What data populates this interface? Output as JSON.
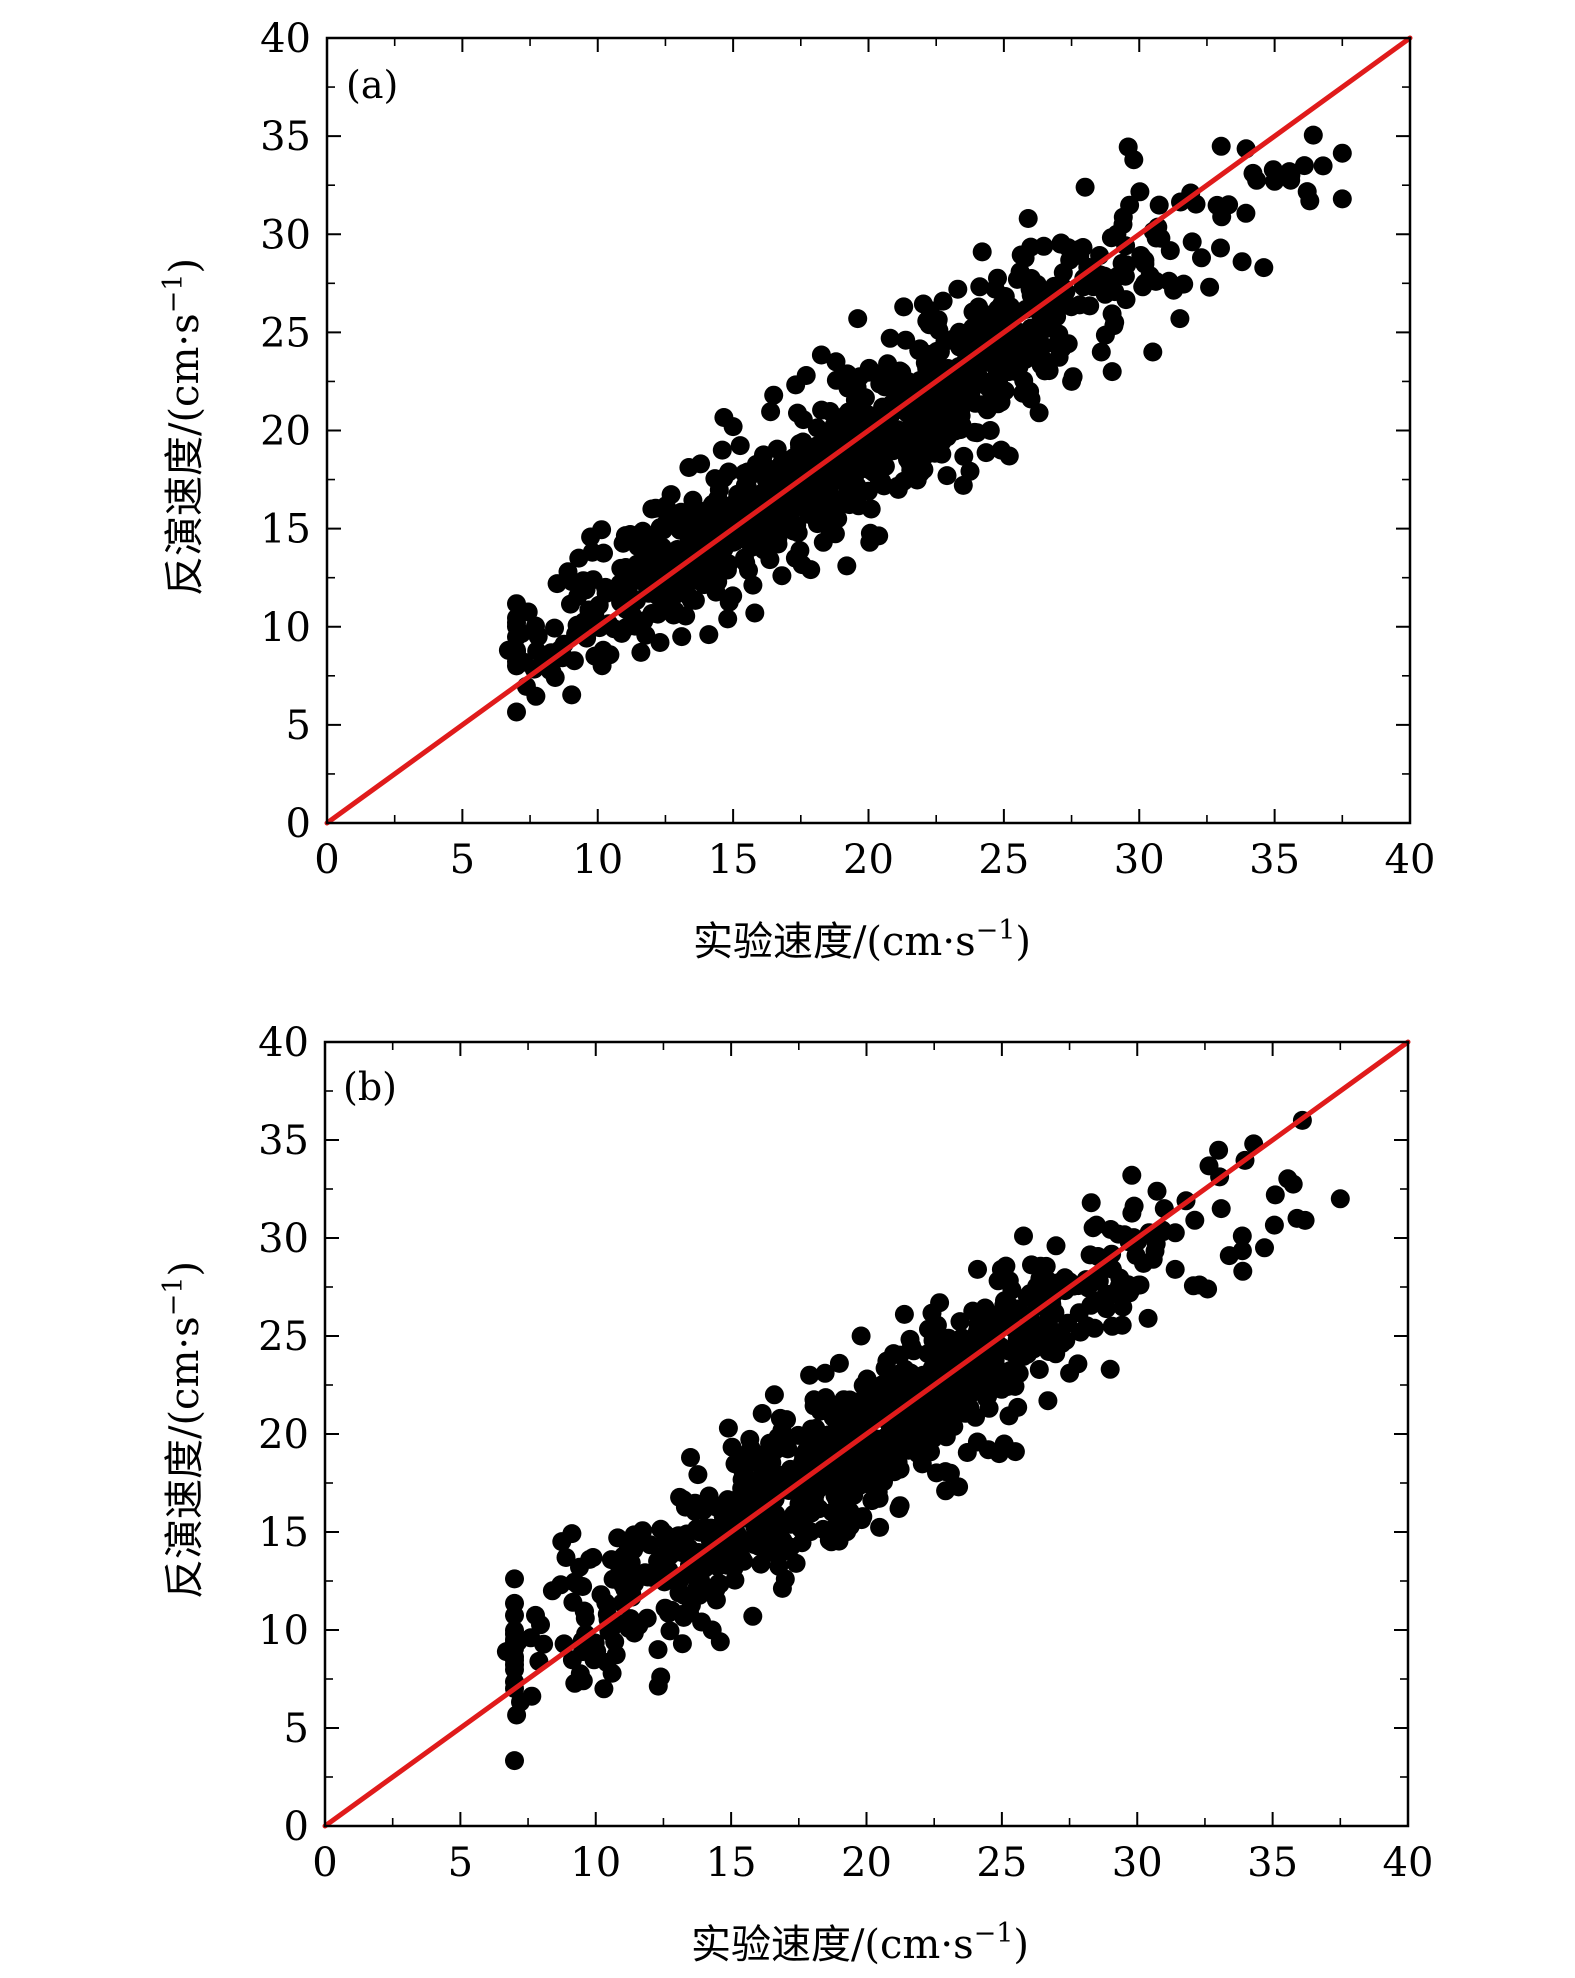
{
  "chart_data": [
    {
      "type": "scatter",
      "panel_label": "(a)",
      "xlabel": "实验速度/(cm·s",
      "xlabel_sup": "−1",
      "xlabel_tail": ")",
      "ylabel": "反演速度/(cm·s",
      "ylabel_sup": "−1",
      "ylabel_tail": ")",
      "xlim": [
        0,
        40
      ],
      "ylim": [
        0,
        40
      ],
      "xticks": [
        "0",
        "5",
        "10",
        "15",
        "20",
        "25",
        "30",
        "35",
        "40"
      ],
      "yticks": [
        "0",
        "5",
        "10",
        "15",
        "20",
        "25",
        "30",
        "35",
        "40"
      ],
      "grid": false,
      "marker_color": "#000000",
      "reference_line": {
        "from": [
          0,
          0
        ],
        "to": [
          40,
          40
        ],
        "color": "#e01b1b"
      },
      "n_points": 900,
      "seed": 7,
      "series": [
        {
          "points": [
            [
              6.7,
              8.8
            ],
            [
              7.8,
              9.5
            ],
            [
              8.1,
              8.4
            ],
            [
              8.5,
              12.2
            ],
            [
              8.9,
              12.8
            ],
            [
              9.3,
              13.5
            ],
            [
              9.8,
              13.8
            ],
            [
              10.2,
              8.8
            ],
            [
              10.6,
              9.9
            ],
            [
              11.0,
              12.1
            ],
            [
              11.2,
              14.7
            ],
            [
              11.7,
              10.3
            ],
            [
              12.0,
              16.0
            ],
            [
              12.3,
              9.2
            ],
            [
              12.8,
              10.6
            ],
            [
              13.1,
              9.5
            ],
            [
              13.4,
              11.5
            ],
            [
              13.5,
              14.6
            ],
            [
              13.8,
              18.3
            ],
            [
              14.1,
              9.6
            ],
            [
              14.5,
              13.4
            ],
            [
              14.6,
              19.0
            ],
            [
              14.8,
              10.4
            ],
            [
              15.0,
              20.2
            ],
            [
              15.3,
              16.7
            ],
            [
              15.8,
              10.7
            ],
            [
              16.0,
              14.1
            ],
            [
              16.5,
              21.8
            ],
            [
              16.8,
              12.6
            ],
            [
              17.3,
              13.5
            ],
            [
              17.7,
              22.8
            ],
            [
              18.2,
              18.9
            ],
            [
              18.5,
              15.1
            ],
            [
              18.8,
              23.5
            ],
            [
              19.2,
              13.1
            ],
            [
              19.4,
              17.5
            ],
            [
              19.6,
              25.7
            ],
            [
              20.1,
              16.0
            ],
            [
              20.5,
              21.0
            ],
            [
              20.8,
              24.7
            ],
            [
              21.1,
              17.0
            ],
            [
              21.3,
              26.3
            ],
            [
              21.6,
              19.4
            ],
            [
              22.2,
              21.8
            ],
            [
              22.6,
              25.1
            ],
            [
              22.9,
              17.7
            ],
            [
              23.3,
              27.2
            ],
            [
              23.5,
              17.2
            ],
            [
              23.8,
              22.4
            ],
            [
              24.2,
              29.1
            ],
            [
              24.5,
              20.0
            ],
            [
              24.9,
              19.0
            ],
            [
              25.2,
              18.7
            ],
            [
              25.5,
              27.7
            ],
            [
              25.7,
              21.9
            ],
            [
              25.9,
              30.8
            ],
            [
              26.3,
              20.9
            ],
            [
              26.6,
              25.2
            ],
            [
              27.1,
              29.5
            ],
            [
              27.5,
              22.5
            ],
            [
              27.8,
              26.4
            ],
            [
              28.0,
              32.4
            ],
            [
              28.3,
              28.1
            ],
            [
              28.6,
              24.0
            ],
            [
              29.0,
              23.0
            ],
            [
              29.4,
              30.5
            ],
            [
              29.8,
              33.8
            ],
            [
              30.2,
              27.5
            ],
            [
              30.5,
              24.0
            ],
            [
              30.8,
              29.8
            ],
            [
              31.1,
              27.6
            ],
            [
              31.5,
              25.7
            ],
            [
              31.9,
              32.1
            ],
            [
              32.3,
              28.8
            ],
            [
              32.6,
              27.3
            ],
            [
              33.0,
              29.3
            ],
            [
              33.3,
              31.5
            ],
            [
              33.8,
              28.6
            ],
            [
              34.2,
              33.1
            ],
            [
              34.6,
              28.3
            ],
            [
              35.0,
              32.7
            ],
            [
              35.6,
              33.0
            ],
            [
              36.1,
              33.5
            ],
            [
              36.3,
              31.7
            ],
            [
              37.5,
              31.8
            ]
          ]
        }
      ]
    },
    {
      "type": "scatter",
      "panel_label": "(b)",
      "xlabel": "实验速度/(cm·s",
      "xlabel_sup": "−1",
      "xlabel_tail": ")",
      "ylabel": "反演速度/(cm·s",
      "ylabel_sup": "−1",
      "ylabel_tail": ")",
      "xlim": [
        0,
        40
      ],
      "ylim": [
        0,
        40
      ],
      "xticks": [
        "0",
        "5",
        "10",
        "15",
        "20",
        "25",
        "30",
        "35",
        "40"
      ],
      "yticks": [
        "0",
        "5",
        "10",
        "15",
        "20",
        "25",
        "30",
        "35",
        "40"
      ],
      "grid": false,
      "marker_color": "#000000",
      "reference_line": {
        "from": [
          0,
          0
        ],
        "to": [
          40,
          40
        ],
        "color": "#e01b1b"
      },
      "n_points": 900,
      "seed": 13,
      "series": [
        {
          "points": [
            [
              6.7,
              8.9
            ],
            [
              7.6,
              9.6
            ],
            [
              7.9,
              8.4
            ],
            [
              8.4,
              12.0
            ],
            [
              8.9,
              13.7
            ],
            [
              9.4,
              13.2
            ],
            [
              9.9,
              13.7
            ],
            [
              10.3,
              7.0
            ],
            [
              10.7,
              9.4
            ],
            [
              11.0,
              12.3
            ],
            [
              11.4,
              14.1
            ],
            [
              11.9,
              10.6
            ],
            [
              12.3,
              9.0
            ],
            [
              12.4,
              7.6
            ],
            [
              12.8,
              11.0
            ],
            [
              13.2,
              9.3
            ],
            [
              13.5,
              18.8
            ],
            [
              13.9,
              12.4
            ],
            [
              14.3,
              10.0
            ],
            [
              14.6,
              9.4
            ],
            [
              14.9,
              20.3
            ],
            [
              15.2,
              16.6
            ],
            [
              15.8,
              10.7
            ],
            [
              16.1,
              14.3
            ],
            [
              16.6,
              22.0
            ],
            [
              17.0,
              12.6
            ],
            [
              17.4,
              13.4
            ],
            [
              17.9,
              23.0
            ],
            [
              18.3,
              18.7
            ],
            [
              18.7,
              14.5
            ],
            [
              19.0,
              23.6
            ],
            [
              19.4,
              15.3
            ],
            [
              19.8,
              25.0
            ],
            [
              20.2,
              16.6
            ],
            [
              20.6,
              21.4
            ],
            [
              21.0,
              24.1
            ],
            [
              21.2,
              16.2
            ],
            [
              21.4,
              26.1
            ],
            [
              21.9,
              19.0
            ],
            [
              22.3,
              21.6
            ],
            [
              22.7,
              26.7
            ],
            [
              23.1,
              18.0
            ],
            [
              23.4,
              17.3
            ],
            [
              23.7,
              22.3
            ],
            [
              24.1,
              28.4
            ],
            [
              24.5,
              19.2
            ],
            [
              24.9,
              19.0
            ],
            [
              25.2,
              25.7
            ],
            [
              25.5,
              19.1
            ],
            [
              25.8,
              30.1
            ],
            [
              26.3,
              26.5
            ],
            [
              26.7,
              21.7
            ],
            [
              27.0,
              29.6
            ],
            [
              27.5,
              23.1
            ],
            [
              27.9,
              25.2
            ],
            [
              28.3,
              31.8
            ],
            [
              28.6,
              27.8
            ],
            [
              29.0,
              23.3
            ],
            [
              29.3,
              30.2
            ],
            [
              29.8,
              33.2
            ],
            [
              30.1,
              27.6
            ],
            [
              30.4,
              25.9
            ],
            [
              30.7,
              29.7
            ],
            [
              31.0,
              31.5
            ],
            [
              31.4,
              28.4
            ],
            [
              31.8,
              31.9
            ],
            [
              32.3,
              27.6
            ],
            [
              32.6,
              27.4
            ],
            [
              33.1,
              31.5
            ],
            [
              33.4,
              29.1
            ],
            [
              33.9,
              28.3
            ],
            [
              34.3,
              34.8
            ],
            [
              34.7,
              29.5
            ],
            [
              35.1,
              32.2
            ],
            [
              35.9,
              31.0
            ],
            [
              36.1,
              36.0
            ],
            [
              36.2,
              30.9
            ],
            [
              37.5,
              32.0
            ]
          ]
        }
      ]
    }
  ]
}
